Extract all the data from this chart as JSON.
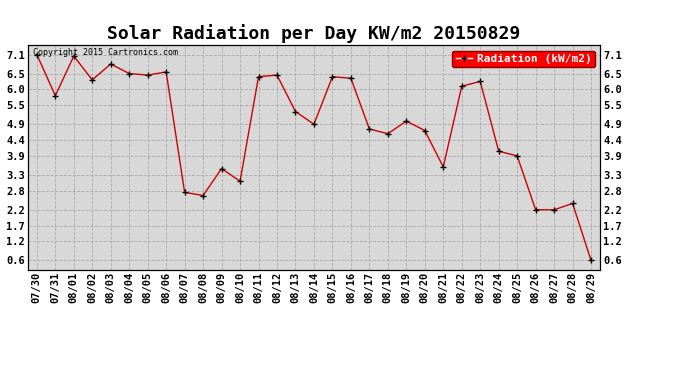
{
  "title": "Solar Radiation per Day KW/m2 20150829",
  "labels": [
    "07/30",
    "07/31",
    "08/01",
    "08/02",
    "08/03",
    "08/04",
    "08/05",
    "08/06",
    "08/07",
    "08/08",
    "08/09",
    "08/10",
    "08/11",
    "08/12",
    "08/13",
    "08/14",
    "08/15",
    "08/16",
    "08/17",
    "08/18",
    "08/19",
    "08/20",
    "08/21",
    "08/22",
    "08/23",
    "08/24",
    "08/25",
    "08/26",
    "08/27",
    "08/28",
    "08/29"
  ],
  "values": [
    7.1,
    5.8,
    7.05,
    6.3,
    6.8,
    6.5,
    6.45,
    6.55,
    2.75,
    2.65,
    3.5,
    3.1,
    6.4,
    6.45,
    5.3,
    4.9,
    6.4,
    6.35,
    4.75,
    4.6,
    5.0,
    4.7,
    3.55,
    6.1,
    6.25,
    4.05,
    3.9,
    2.2,
    2.2,
    2.4,
    0.6
  ],
  "line_color": "#cc0000",
  "marker_color": "#000000",
  "bg_color": "#ffffff",
  "plot_bg_color": "#d8d8d8",
  "grid_color": "#aaaaaa",
  "legend_label": "Radiation (kW/m2)",
  "legend_bg": "#ff0000",
  "legend_text_color": "#ffffff",
  "copyright_text": "Copyright 2015 Cartronics.com",
  "ylim": [
    0.3,
    7.4
  ],
  "yticks": [
    0.6,
    1.2,
    1.7,
    2.2,
    2.8,
    3.3,
    3.9,
    4.4,
    4.9,
    5.5,
    6.0,
    6.5,
    7.1
  ],
  "title_fontsize": 13,
  "tick_fontsize": 7.5,
  "legend_fontsize": 8
}
